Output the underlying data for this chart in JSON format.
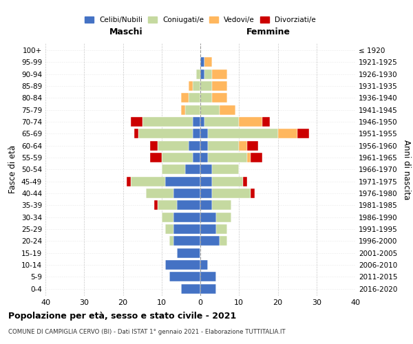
{
  "age_groups": [
    "0-4",
    "5-9",
    "10-14",
    "15-19",
    "20-24",
    "25-29",
    "30-34",
    "35-39",
    "40-44",
    "45-49",
    "50-54",
    "55-59",
    "60-64",
    "65-69",
    "70-74",
    "75-79",
    "80-84",
    "85-89",
    "90-94",
    "95-99",
    "100+"
  ],
  "birth_years": [
    "2016-2020",
    "2011-2015",
    "2006-2010",
    "2001-2005",
    "1996-2000",
    "1991-1995",
    "1986-1990",
    "1981-1985",
    "1976-1980",
    "1971-1975",
    "1966-1970",
    "1961-1965",
    "1956-1960",
    "1951-1955",
    "1946-1950",
    "1941-1945",
    "1936-1940",
    "1931-1935",
    "1926-1930",
    "1921-1925",
    "≤ 1920"
  ],
  "colors": {
    "celibi": "#4472C4",
    "coniugati": "#C5D9A0",
    "vedovi": "#FFB75E",
    "divorziati": "#CC0000"
  },
  "males": {
    "celibi": [
      5,
      8,
      9,
      6,
      7,
      7,
      7,
      6,
      7,
      9,
      4,
      2,
      3,
      2,
      2,
      0,
      0,
      0,
      0,
      0,
      0
    ],
    "coniugati": [
      0,
      0,
      0,
      0,
      1,
      2,
      3,
      5,
      7,
      9,
      6,
      8,
      8,
      14,
      13,
      4,
      3,
      2,
      1,
      0,
      0
    ],
    "vedovi": [
      0,
      0,
      0,
      0,
      0,
      0,
      0,
      0,
      0,
      0,
      0,
      0,
      0,
      0,
      0,
      1,
      2,
      1,
      0,
      0,
      0
    ],
    "divorziati": [
      0,
      0,
      0,
      0,
      0,
      0,
      0,
      1,
      0,
      1,
      0,
      3,
      2,
      1,
      3,
      0,
      0,
      0,
      0,
      0,
      0
    ]
  },
  "females": {
    "celibi": [
      4,
      4,
      2,
      0,
      5,
      4,
      4,
      3,
      3,
      3,
      3,
      2,
      2,
      2,
      1,
      0,
      0,
      0,
      1,
      1,
      0
    ],
    "coniugati": [
      0,
      0,
      0,
      0,
      2,
      3,
      4,
      5,
      10,
      8,
      7,
      10,
      8,
      18,
      9,
      5,
      3,
      3,
      2,
      0,
      0
    ],
    "vedovi": [
      0,
      0,
      0,
      0,
      0,
      0,
      0,
      0,
      0,
      0,
      0,
      1,
      2,
      5,
      6,
      4,
      4,
      4,
      4,
      2,
      0
    ],
    "divorziati": [
      0,
      0,
      0,
      0,
      0,
      0,
      0,
      0,
      1,
      1,
      0,
      3,
      3,
      3,
      2,
      0,
      0,
      0,
      0,
      0,
      0
    ]
  },
  "xlim": [
    -40,
    40
  ],
  "xticks": [
    -40,
    -30,
    -20,
    -10,
    0,
    10,
    20,
    30,
    40
  ],
  "xticklabels": [
    "40",
    "30",
    "20",
    "10",
    "0",
    "10",
    "20",
    "30",
    "40"
  ],
  "title1": "Popolazione per età, sesso e stato civile - 2021",
  "title2": "COMUNE DI CAMPIGLIA CERVO (BI) - Dati ISTAT 1° gennaio 2021 - Elaborazione TUTTITALIA.IT",
  "ylabel_left": "Fasce di età",
  "ylabel_right": "Anni di nascita",
  "label_maschi": "Maschi",
  "label_femmine": "Femmine",
  "legend_labels": [
    "Celibi/Nubili",
    "Coniugati/e",
    "Vedovi/e",
    "Divorziati/e"
  ],
  "bg_color": "#FFFFFF"
}
